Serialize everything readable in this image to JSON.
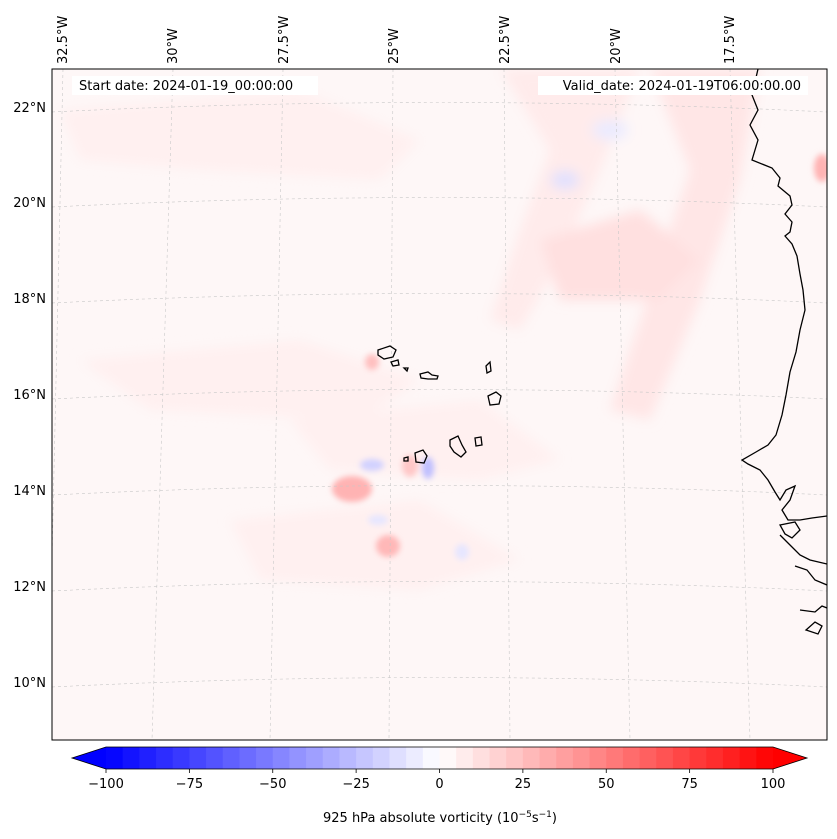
{
  "header": {
    "start_date": "Start date: 2024-01-19_00:00:00",
    "valid_date": "Valid_date: 2024-01-19T06:00:00.00"
  },
  "longitude_labels": [
    "32.5°W",
    "30°W",
    "27.5°W",
    "25°W",
    "22.5°W",
    "20°W",
    "17.5°W"
  ],
  "latitude_labels": [
    "22°N",
    "20°N",
    "18°N",
    "16°N",
    "14°N",
    "12°N",
    "10°N"
  ],
  "colorbar": {
    "label_main": "925 hPa absolute vorticity (10",
    "label_exp1": "−5",
    "label_mid": "s",
    "label_exp2": "−1",
    "label_end": ")",
    "min": -100,
    "max": 100,
    "step": 5,
    "ticks": [
      "−100",
      "−75",
      "−50",
      "−25",
      "0",
      "25",
      "50",
      "75",
      "100"
    ],
    "color_negative": "#0000ff",
    "color_positive": "#ff0000",
    "color_zero": "#ffffff"
  },
  "field": {
    "background_color": "#fef7f7",
    "features": [
      {
        "type": "positive",
        "value": 8
      },
      {
        "type": "positive",
        "value": 10
      },
      {
        "type": "positive",
        "value": 12
      },
      {
        "type": "positive",
        "value": 6
      },
      {
        "type": "negative",
        "value": -8
      },
      {
        "type": "negative",
        "value": -12
      },
      {
        "type": "positive",
        "value": 30
      },
      {
        "type": "positive",
        "value": 22
      },
      {
        "type": "negative",
        "value": -25
      },
      {
        "type": "negative",
        "value": -18
      },
      {
        "type": "positive",
        "value": 28
      },
      {
        "type": "positive",
        "value": 25
      },
      {
        "type": "negative",
        "value": -10
      }
    ]
  },
  "coastline_color": "#000000",
  "gridline_color": "#c8c8c8"
}
